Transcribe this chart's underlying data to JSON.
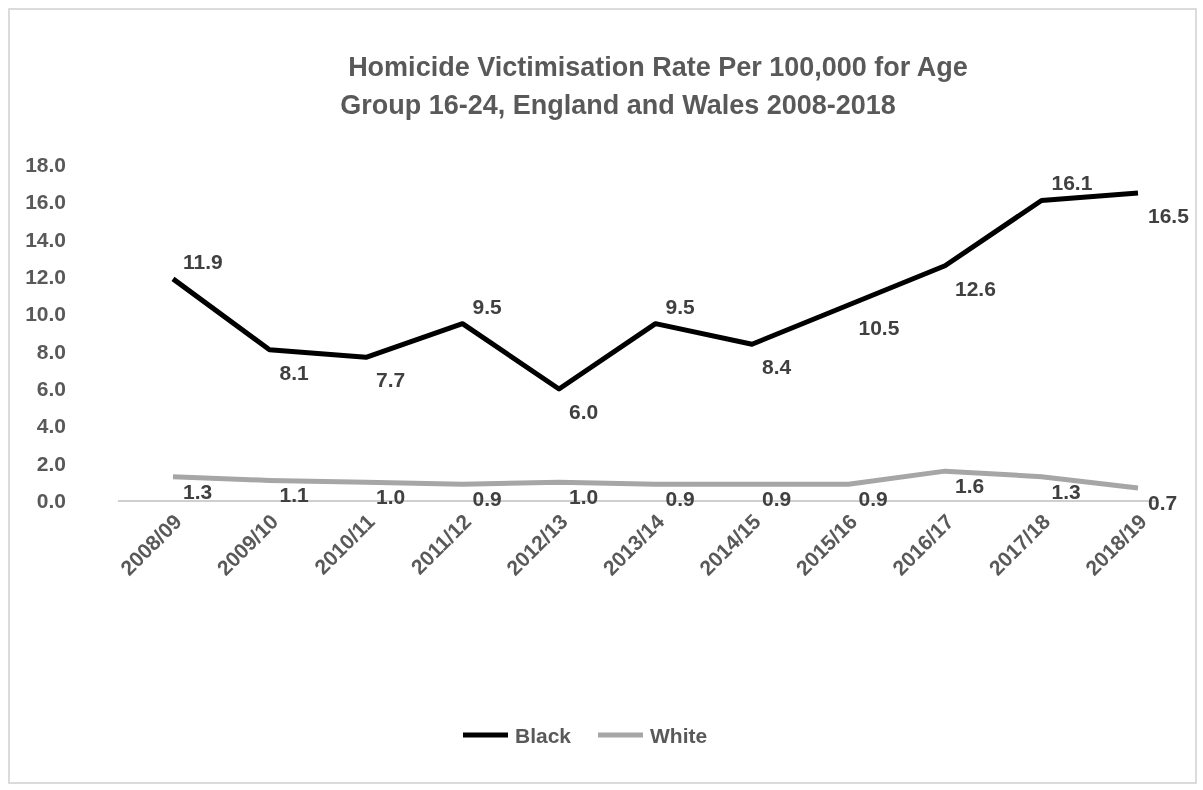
{
  "chart_data": {
    "type": "line",
    "title": "Homicide Victimisation Rate Per 100,000 for Age\nGroup 16-24, England and Wales 2008-2018",
    "categories": [
      "2008/09",
      "2009/10",
      "2010/11",
      "2011/12",
      "2012/13",
      "2013/14",
      "2014/15",
      "2015/16",
      "2016/17",
      "2017/18",
      "2018/19"
    ],
    "series": [
      {
        "name": "Black",
        "color": "#000000",
        "values": [
          11.9,
          8.1,
          7.7,
          9.5,
          6.0,
          9.5,
          8.4,
          10.5,
          12.6,
          16.1,
          16.5
        ],
        "value_labels": [
          "11.9",
          "8.1",
          "7.7",
          "9.5",
          "6.0",
          "9.5",
          "8.4",
          "10.5",
          "12.6",
          "16.1",
          "16.5"
        ]
      },
      {
        "name": "White",
        "color": "#a6a6a6",
        "values": [
          1.3,
          1.1,
          1.0,
          0.9,
          1.0,
          0.9,
          0.9,
          0.9,
          1.6,
          1.3,
          0.7
        ],
        "value_labels": [
          "1.3",
          "1.1",
          "1.0",
          "0.9",
          "1.0",
          "0.9",
          "0.9",
          "0.9",
          "1.6",
          "1.3",
          "0.7"
        ]
      }
    ],
    "ylim": [
      0,
      18
    ],
    "yticks": [
      {
        "value": 0,
        "label": "0.0"
      },
      {
        "value": 2,
        "label": "2.0"
      },
      {
        "value": 4,
        "label": "4.0"
      },
      {
        "value": 6,
        "label": "6.0"
      },
      {
        "value": 8,
        "label": "8.0"
      },
      {
        "value": 10,
        "label": "10.0"
      },
      {
        "value": 12,
        "label": "12.0"
      },
      {
        "value": 14,
        "label": "14.0"
      },
      {
        "value": 16,
        "label": "16.0"
      },
      {
        "value": 18,
        "label": "18.0"
      }
    ],
    "legend": "bottom",
    "grid": false,
    "marker": "none",
    "line_style": "solid"
  }
}
